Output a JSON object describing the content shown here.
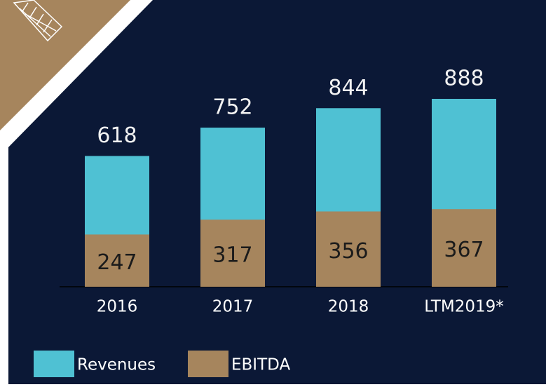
{
  "chart_data": {
    "type": "bar",
    "categories": [
      "2016",
      "2017",
      "2018",
      "LTM2019*"
    ],
    "series": [
      {
        "name": "Revenues",
        "color": "#4fc1d3",
        "values": [
          618,
          752,
          844,
          888
        ]
      },
      {
        "name": "EBITDA",
        "color": "#a6855d",
        "values": [
          247,
          317,
          356,
          367
        ]
      }
    ]
  }
}
